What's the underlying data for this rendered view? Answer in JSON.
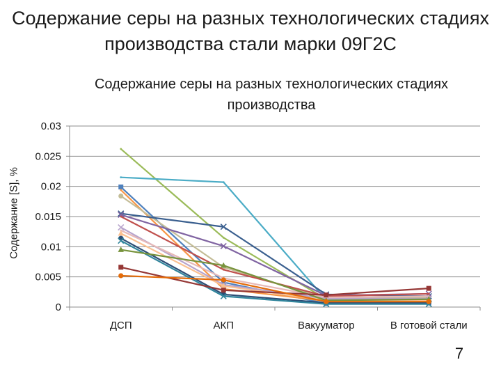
{
  "slide": {
    "title": "Содержание серы на разных технологических стадиях производства стали марки 09Г2С",
    "page_number": "7"
  },
  "chart_data": {
    "type": "line",
    "title": "Содержание серы на разных технологических стадиях производства",
    "xlabel": "",
    "ylabel": "Содержание [S], %",
    "categories": [
      "ДСП",
      "АКП",
      "Вакууматор",
      "В готовой стали"
    ],
    "ylim": [
      0,
      0.03
    ],
    "yticks": [
      0,
      0.005,
      0.01,
      0.015,
      0.02,
      0.025,
      0.03
    ],
    "ytick_labels": [
      "0",
      "0.005",
      "0.01",
      "0.015",
      "0.02",
      "0.025",
      "0.03"
    ],
    "grid": true,
    "legend": "none",
    "series": [
      {
        "values": [
          0.0262,
          0.0115,
          0.0013,
          0.0015
        ],
        "color": "#9bbb59",
        "marker": "none"
      },
      {
        "values": [
          0.0215,
          0.0207,
          0.0012,
          0.0009
        ],
        "color": "#4bacc6",
        "marker": "none"
      },
      {
        "values": [
          0.0199,
          0.0041,
          0.0006,
          0.0007
        ],
        "color": "#4f81bd",
        "marker": "square"
      },
      {
        "values": [
          0.0194,
          0.003,
          0.001,
          0.0012
        ],
        "color": "#f79646",
        "marker": "none"
      },
      {
        "values": [
          0.0184,
          0.0066,
          0.0014,
          0.0016
        ],
        "color": "#c4bd97",
        "marker": "circle"
      },
      {
        "values": [
          0.0155,
          0.0133,
          0.0021,
          0.0018
        ],
        "color": "#3a5f8f",
        "marker": "x"
      },
      {
        "values": [
          0.0153,
          0.0101,
          0.0019,
          0.0022
        ],
        "color": "#8064a2",
        "marker": "x"
      },
      {
        "values": [
          0.015,
          0.0062,
          0.0018,
          0.0022
        ],
        "color": "#c0504d",
        "marker": "none"
      },
      {
        "values": [
          0.0132,
          0.0037,
          0.0014,
          0.0014
        ],
        "color": "#b7a4cc",
        "marker": "x"
      },
      {
        "values": [
          0.0127,
          0.0048,
          0.0016,
          0.0018
        ],
        "color": "#e6b9b8",
        "marker": "none"
      },
      {
        "values": [
          0.0122,
          0.0035,
          0.0011,
          0.0011
        ],
        "color": "#fac090",
        "marker": "triangle"
      },
      {
        "values": [
          0.0114,
          0.0021,
          0.0007,
          0.0007
        ],
        "color": "#2c4d75",
        "marker": "circle"
      },
      {
        "values": [
          0.011,
          0.0018,
          0.0005,
          0.0005
        ],
        "color": "#31859c",
        "marker": "x"
      },
      {
        "values": [
          0.0095,
          0.0069,
          0.0011,
          0.0013
        ],
        "color": "#77933c",
        "marker": "triangle"
      },
      {
        "values": [
          0.0066,
          0.0028,
          0.002,
          0.0031
        ],
        "color": "#953735",
        "marker": "square"
      },
      {
        "values": [
          0.0052,
          0.0045,
          0.0009,
          0.0009
        ],
        "color": "#e46c0a",
        "marker": "circle"
      }
    ]
  }
}
